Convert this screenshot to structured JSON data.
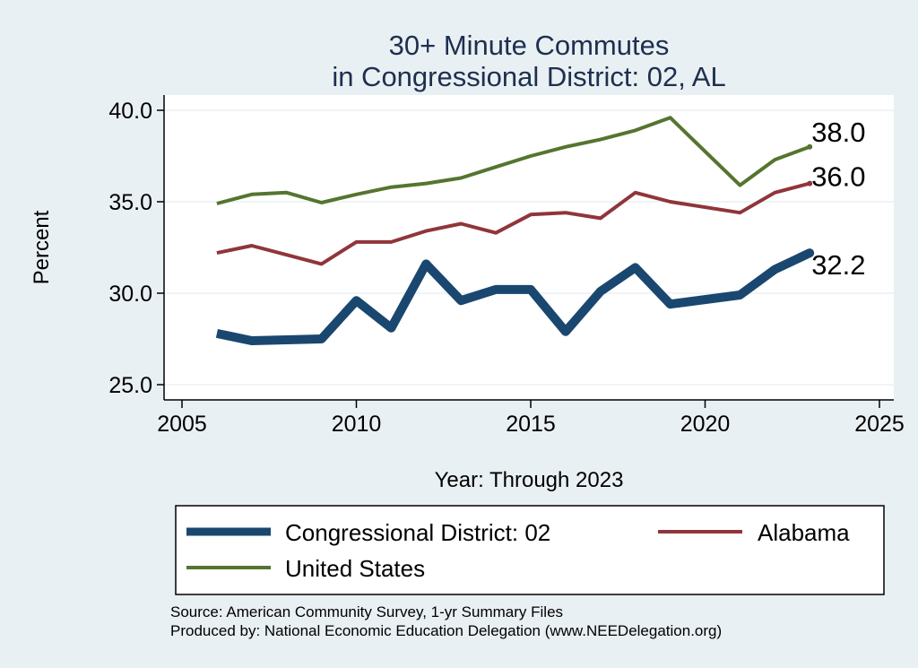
{
  "chart_data": {
    "type": "line",
    "title": [
      "30+ Minute Commutes",
      "in Congressional District:  02, AL"
    ],
    "xlabel": "Year: Through 2023",
    "ylabel": "Percent",
    "xlim": [
      2005,
      2025
    ],
    "ylim": [
      25,
      40
    ],
    "xticks": [
      2005,
      2010,
      2015,
      2020,
      2025
    ],
    "yticks": [
      25.0,
      30.0,
      35.0,
      40.0
    ],
    "ytick_labels": [
      "25.0",
      "30.0",
      "35.0",
      "40.0"
    ],
    "grid": true,
    "series": [
      {
        "name": "Congressional District:  02",
        "color": "#1a476f",
        "x": [
          2006,
          2007,
          2008,
          2009,
          2010,
          2011,
          2012,
          2013,
          2014,
          2015,
          2016,
          2017,
          2018,
          2019,
          2021,
          2022,
          2023
        ],
        "y": [
          27.8,
          27.4,
          27.45,
          27.5,
          29.6,
          28.1,
          31.6,
          29.6,
          30.2,
          30.2,
          27.9,
          30.1,
          31.4,
          29.4,
          29.9,
          31.3,
          32.2
        ],
        "end_label": "32.2"
      },
      {
        "name": "Alabama",
        "color": "#90353b",
        "x": [
          2006,
          2007,
          2008,
          2009,
          2010,
          2011,
          2012,
          2013,
          2014,
          2015,
          2016,
          2017,
          2018,
          2019,
          2021,
          2022,
          2023
        ],
        "y": [
          32.2,
          32.6,
          32.1,
          31.6,
          32.8,
          32.8,
          33.4,
          33.8,
          33.3,
          34.3,
          34.4,
          34.1,
          35.5,
          35.0,
          34.4,
          35.5,
          36.0
        ],
        "end_label": "36.0"
      },
      {
        "name": "United States",
        "color": "#55752f",
        "x": [
          2006,
          2007,
          2008,
          2009,
          2010,
          2011,
          2012,
          2013,
          2014,
          2015,
          2016,
          2017,
          2018,
          2019,
          2021,
          2022,
          2023
        ],
        "y": [
          34.9,
          35.4,
          35.5,
          34.95,
          35.4,
          35.8,
          36.0,
          36.3,
          36.9,
          37.5,
          38.0,
          38.4,
          38.9,
          39.6,
          35.9,
          37.3,
          38.0
        ],
        "end_label": "38.0"
      }
    ],
    "legend": {
      "placement": "bottom",
      "entries": [
        "Congressional District:  02",
        "Alabama",
        "United States"
      ]
    },
    "notes": [
      "Source: American Community Survey, 1-yr Summary Files",
      "Produced by: National Economic Education Delegation (www.NEEDelegation.org)"
    ]
  }
}
